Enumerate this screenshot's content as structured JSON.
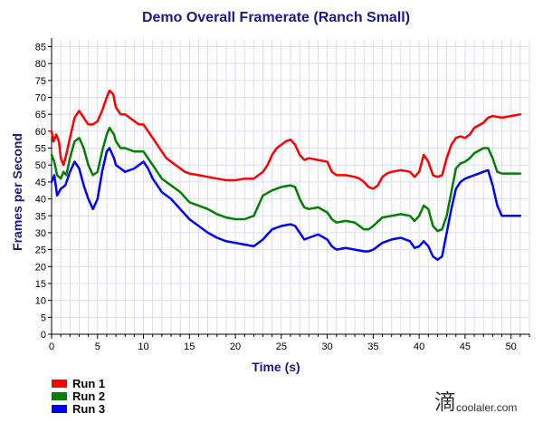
{
  "chart_data": {
    "type": "line",
    "title": "Demo Overall Framerate (Ranch Small)",
    "xlabel": "Time (s)",
    "ylabel": "Frames per Second",
    "xlim": [
      0,
      52
    ],
    "ylim": [
      0,
      87
    ],
    "xticks": [
      0,
      5,
      10,
      15,
      20,
      25,
      30,
      35,
      40,
      45,
      50
    ],
    "yticks": [
      0,
      5,
      10,
      15,
      20,
      25,
      30,
      35,
      40,
      45,
      50,
      55,
      60,
      65,
      70,
      75,
      80,
      85
    ],
    "grid": true,
    "legend_position": "bottom-left",
    "series": [
      {
        "name": "Run 1",
        "color": "#ff0000",
        "points": [
          [
            0,
            60
          ],
          [
            0.2,
            57
          ],
          [
            0.5,
            59
          ],
          [
            0.8,
            57
          ],
          [
            1,
            52
          ],
          [
            1.3,
            50
          ],
          [
            1.6,
            53
          ],
          [
            2,
            58
          ],
          [
            2.5,
            64
          ],
          [
            3,
            66
          ],
          [
            3.5,
            64
          ],
          [
            4,
            62
          ],
          [
            4.5,
            62
          ],
          [
            5,
            63
          ],
          [
            5.5,
            66
          ],
          [
            6,
            70
          ],
          [
            6.3,
            72
          ],
          [
            6.7,
            71
          ],
          [
            7,
            67
          ],
          [
            7.5,
            65
          ],
          [
            8,
            65
          ],
          [
            8.5,
            64
          ],
          [
            9,
            63
          ],
          [
            9.5,
            62
          ],
          [
            10,
            62
          ],
          [
            10.5,
            60
          ],
          [
            11,
            58
          ],
          [
            11.5,
            56
          ],
          [
            12,
            54
          ],
          [
            12.5,
            52
          ],
          [
            13,
            51
          ],
          [
            13.5,
            50
          ],
          [
            14,
            49
          ],
          [
            14.5,
            48
          ],
          [
            15,
            47.5
          ],
          [
            16,
            47
          ],
          [
            17,
            46.5
          ],
          [
            18,
            46
          ],
          [
            19,
            45.5
          ],
          [
            20,
            45.5
          ],
          [
            21,
            46
          ],
          [
            22,
            46
          ],
          [
            22.5,
            47
          ],
          [
            23,
            48
          ],
          [
            23.5,
            50
          ],
          [
            24,
            53
          ],
          [
            24.5,
            55
          ],
          [
            25,
            56
          ],
          [
            25.5,
            57
          ],
          [
            26,
            57.5
          ],
          [
            26.5,
            56
          ],
          [
            27,
            53
          ],
          [
            27.5,
            51.5
          ],
          [
            28,
            52
          ],
          [
            29,
            51.5
          ],
          [
            30,
            51
          ],
          [
            30.5,
            48
          ],
          [
            31,
            47
          ],
          [
            32,
            47
          ],
          [
            33,
            46.5
          ],
          [
            33.5,
            46
          ],
          [
            34,
            45
          ],
          [
            34.5,
            43.5
          ],
          [
            35,
            43
          ],
          [
            35.5,
            44
          ],
          [
            36,
            46.5
          ],
          [
            36.5,
            47.5
          ],
          [
            37,
            48
          ],
          [
            38,
            48.5
          ],
          [
            39,
            48
          ],
          [
            39.5,
            46.5
          ],
          [
            40,
            48
          ],
          [
            40.5,
            53
          ],
          [
            41,
            51
          ],
          [
            41.5,
            47
          ],
          [
            42,
            46.5
          ],
          [
            42.5,
            47
          ],
          [
            43,
            52
          ],
          [
            43.5,
            56
          ],
          [
            44,
            58
          ],
          [
            44.5,
            58.5
          ],
          [
            45,
            58
          ],
          [
            45.5,
            59
          ],
          [
            46,
            61
          ],
          [
            47,
            62.5
          ],
          [
            47.5,
            64
          ],
          [
            48,
            64.5
          ],
          [
            49,
            64
          ],
          [
            50,
            64.5
          ],
          [
            51,
            65
          ]
        ]
      },
      {
        "name": "Run 2",
        "color": "#008000",
        "points": [
          [
            0,
            53
          ],
          [
            0.3,
            51
          ],
          [
            0.6,
            47
          ],
          [
            1,
            46
          ],
          [
            1.3,
            48
          ],
          [
            1.6,
            47
          ],
          [
            2,
            52
          ],
          [
            2.5,
            57
          ],
          [
            3,
            58
          ],
          [
            3.5,
            55
          ],
          [
            4,
            50
          ],
          [
            4.5,
            47
          ],
          [
            5,
            48
          ],
          [
            5.5,
            54
          ],
          [
            6,
            59
          ],
          [
            6.3,
            61
          ],
          [
            6.8,
            59
          ],
          [
            7,
            57
          ],
          [
            7.5,
            55
          ],
          [
            8,
            55
          ],
          [
            9,
            54
          ],
          [
            10,
            54
          ],
          [
            10.5,
            52
          ],
          [
            11,
            50
          ],
          [
            11.5,
            48
          ],
          [
            12,
            46
          ],
          [
            13,
            44
          ],
          [
            14,
            42
          ],
          [
            15,
            39
          ],
          [
            16,
            38
          ],
          [
            17,
            37
          ],
          [
            18,
            35.5
          ],
          [
            19,
            34.5
          ],
          [
            20,
            34
          ],
          [
            21,
            34
          ],
          [
            22,
            35
          ],
          [
            22.5,
            38
          ],
          [
            23,
            41
          ],
          [
            24,
            42.5
          ],
          [
            25,
            43.5
          ],
          [
            26,
            44
          ],
          [
            26.5,
            43.5
          ],
          [
            27,
            40
          ],
          [
            27.5,
            37.5
          ],
          [
            28,
            37
          ],
          [
            29,
            37.5
          ],
          [
            30,
            36
          ],
          [
            30.5,
            34
          ],
          [
            31,
            33
          ],
          [
            32,
            33.5
          ],
          [
            33,
            33
          ],
          [
            33.5,
            32
          ],
          [
            34,
            31
          ],
          [
            34.5,
            31
          ],
          [
            35,
            32
          ],
          [
            36,
            34.5
          ],
          [
            37,
            35
          ],
          [
            38,
            35.5
          ],
          [
            39,
            35
          ],
          [
            39.5,
            33.5
          ],
          [
            40,
            35
          ],
          [
            40.5,
            38
          ],
          [
            41,
            37
          ],
          [
            41.5,
            32
          ],
          [
            42,
            30.5
          ],
          [
            42.5,
            31
          ],
          [
            43,
            35
          ],
          [
            43.5,
            42
          ],
          [
            44,
            49
          ],
          [
            44.5,
            50.5
          ],
          [
            45,
            51
          ],
          [
            45.5,
            52
          ],
          [
            46,
            53.5
          ],
          [
            47,
            55
          ],
          [
            47.5,
            55
          ],
          [
            48,
            52
          ],
          [
            48.5,
            48
          ],
          [
            49,
            47.5
          ],
          [
            50,
            47.5
          ],
          [
            51,
            47.5
          ]
        ]
      },
      {
        "name": "Run 3",
        "color": "#0000ff",
        "points": [
          [
            0,
            45
          ],
          [
            0.3,
            47
          ],
          [
            0.6,
            41
          ],
          [
            1,
            43
          ],
          [
            1.5,
            44
          ],
          [
            2,
            48
          ],
          [
            2.5,
            51
          ],
          [
            3,
            49
          ],
          [
            3.5,
            44
          ],
          [
            4,
            40
          ],
          [
            4.5,
            37
          ],
          [
            5,
            40
          ],
          [
            5.5,
            48
          ],
          [
            6,
            54
          ],
          [
            6.3,
            55
          ],
          [
            6.8,
            52
          ],
          [
            7,
            50
          ],
          [
            7.5,
            49
          ],
          [
            8,
            48
          ],
          [
            9,
            49
          ],
          [
            10,
            51
          ],
          [
            10.5,
            49
          ],
          [
            11,
            46
          ],
          [
            11.5,
            44
          ],
          [
            12,
            42
          ],
          [
            13,
            40
          ],
          [
            14,
            37
          ],
          [
            15,
            34
          ],
          [
            16,
            32
          ],
          [
            17,
            30
          ],
          [
            18,
            28.5
          ],
          [
            19,
            27.5
          ],
          [
            20,
            27
          ],
          [
            21,
            26.5
          ],
          [
            22,
            26
          ],
          [
            23,
            28
          ],
          [
            24,
            31
          ],
          [
            25,
            32
          ],
          [
            26,
            32.5
          ],
          [
            26.5,
            32
          ],
          [
            27,
            30
          ],
          [
            27.5,
            28
          ],
          [
            28,
            28.5
          ],
          [
            29,
            29.5
          ],
          [
            30,
            28
          ],
          [
            30.5,
            26
          ],
          [
            31,
            25
          ],
          [
            32,
            25.5
          ],
          [
            33,
            25
          ],
          [
            34,
            24.5
          ],
          [
            34.5,
            24.5
          ],
          [
            35,
            25
          ],
          [
            36,
            27
          ],
          [
            37,
            28
          ],
          [
            38,
            28.5
          ],
          [
            39,
            27.5
          ],
          [
            39.5,
            25.5
          ],
          [
            40,
            26
          ],
          [
            40.5,
            27.5
          ],
          [
            41,
            26
          ],
          [
            41.5,
            23
          ],
          [
            42,
            22
          ],
          [
            42.5,
            23
          ],
          [
            43,
            30
          ],
          [
            43.5,
            37
          ],
          [
            44,
            43
          ],
          [
            44.5,
            45
          ],
          [
            45,
            46
          ],
          [
            46,
            47
          ],
          [
            47,
            48
          ],
          [
            47.5,
            48.5
          ],
          [
            48,
            44
          ],
          [
            48.5,
            38
          ],
          [
            49,
            35
          ],
          [
            50,
            35
          ],
          [
            51,
            35
          ]
        ]
      }
    ]
  },
  "watermark": {
    "glyph": "滴",
    "text": "coolaler.com"
  }
}
